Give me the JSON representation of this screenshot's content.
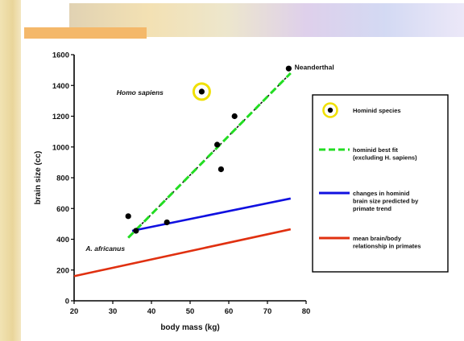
{
  "chart_data": {
    "type": "scatter",
    "xlabel": "body mass (kg)",
    "ylabel": "brain size (cc)",
    "xlim": [
      20,
      80
    ],
    "ylim": [
      0,
      1600
    ],
    "xticks": [
      20,
      30,
      40,
      50,
      60,
      70,
      80
    ],
    "yticks": [
      0,
      200,
      400,
      600,
      800,
      1000,
      1200,
      1400,
      1600
    ],
    "points": [
      {
        "x": 34,
        "y": 550
      },
      {
        "x": 36,
        "y": 455
      },
      {
        "x": 44,
        "y": 510
      },
      {
        "x": 57,
        "y": 1015
      },
      {
        "x": 58,
        "y": 855
      },
      {
        "x": 61.5,
        "y": 1200
      },
      {
        "x": 75.5,
        "y": 1510
      },
      {
        "x": 53,
        "y": 1360,
        "highlight": true
      }
    ],
    "lines": [
      {
        "name": "hominid best fit (excluding H. sapiens)",
        "color": "#22dd22",
        "style": "dashed",
        "from": [
          34,
          410
        ],
        "to": [
          76,
          1480
        ]
      },
      {
        "name": "changes in hominid brain size predicted by primate trend",
        "color": "#1010e0",
        "style": "solid",
        "from": [
          35,
          455
        ],
        "to": [
          76,
          665
        ]
      },
      {
        "name": "mean brain/body relationship in primates",
        "color": "#e03010",
        "style": "solid",
        "from": [
          20,
          160
        ],
        "to": [
          76,
          465
        ]
      }
    ],
    "annotations": [
      {
        "text": "Neanderthal",
        "x": 77,
        "y": 1520,
        "italic": false
      },
      {
        "text": "Homo sapiens",
        "x": 31,
        "y": 1355,
        "italic": true
      },
      {
        "text": "A. africanus",
        "x": 23,
        "y": 340,
        "italic": true
      }
    ],
    "legend": [
      {
        "kind": "marker",
        "lines": [
          "Hominid species"
        ]
      },
      {
        "kind": "line",
        "color": "#22dd22",
        "dashed": true,
        "lines": [
          "hominid best fit",
          "(excluding H. sapiens)"
        ]
      },
      {
        "kind": "line",
        "color": "#1010e0",
        "dashed": false,
        "lines": [
          "changes in hominid",
          "brain size predicted by",
          "primate trend"
        ]
      },
      {
        "kind": "line",
        "color": "#e03010",
        "dashed": false,
        "lines": [
          "mean brain/body",
          "relationship in primates"
        ]
      }
    ],
    "highlight_color": "#f0e000"
  }
}
